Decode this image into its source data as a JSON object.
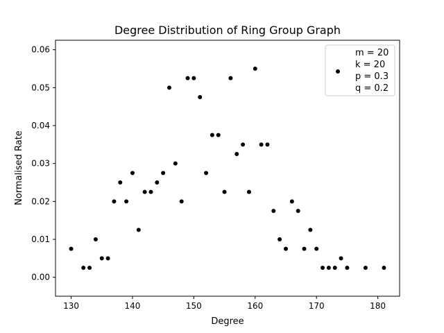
{
  "chart_data": {
    "type": "scatter",
    "title": "Degree Distribution of Ring Group Graph",
    "xlabel": "Degree",
    "ylabel": "Normalised Rate",
    "xlim": [
      127.45,
      183.55
    ],
    "ylim": [
      -0.005,
      0.0625
    ],
    "xticks": [
      130,
      140,
      150,
      160,
      170,
      180
    ],
    "yticks": [
      0.0,
      0.01,
      0.02,
      0.03,
      0.04,
      0.05,
      0.06
    ],
    "ytick_labels": [
      "0.00",
      "0.01",
      "0.02",
      "0.03",
      "0.04",
      "0.05",
      "0.06"
    ],
    "grid": false,
    "legend_position": "top-right",
    "marker_color": "#000000",
    "legend": {
      "lines": [
        "m = 20",
        "k = 20",
        "p = 0.3",
        "q = 0.2"
      ]
    },
    "series": [
      {
        "x": [
          130,
          132,
          133,
          134,
          135,
          136,
          137,
          138,
          139,
          140,
          141,
          142,
          143,
          144,
          145,
          146,
          147,
          148,
          149,
          150,
          151,
          152,
          153,
          154,
          155,
          156,
          157,
          158,
          159,
          160,
          161,
          162,
          163,
          164,
          165,
          166,
          167,
          168,
          169,
          170,
          171,
          172,
          173,
          174,
          175,
          178,
          181
        ],
        "y": [
          0.0075,
          0.0025,
          0.0025,
          0.01,
          0.005,
          0.005,
          0.02,
          0.025,
          0.02,
          0.0275,
          0.0125,
          0.0225,
          0.0225,
          0.025,
          0.0275,
          0.05,
          0.03,
          0.02,
          0.0525,
          0.0525,
          0.0475,
          0.0275,
          0.0375,
          0.0375,
          0.0225,
          0.0525,
          0.0325,
          0.035,
          0.0225,
          0.055,
          0.035,
          0.035,
          0.0175,
          0.01,
          0.0075,
          0.02,
          0.0175,
          0.0075,
          0.0125,
          0.0075,
          0.0025,
          0.0025,
          0.0025,
          0.005,
          0.0025,
          0.0025,
          0.0025
        ]
      }
    ]
  }
}
